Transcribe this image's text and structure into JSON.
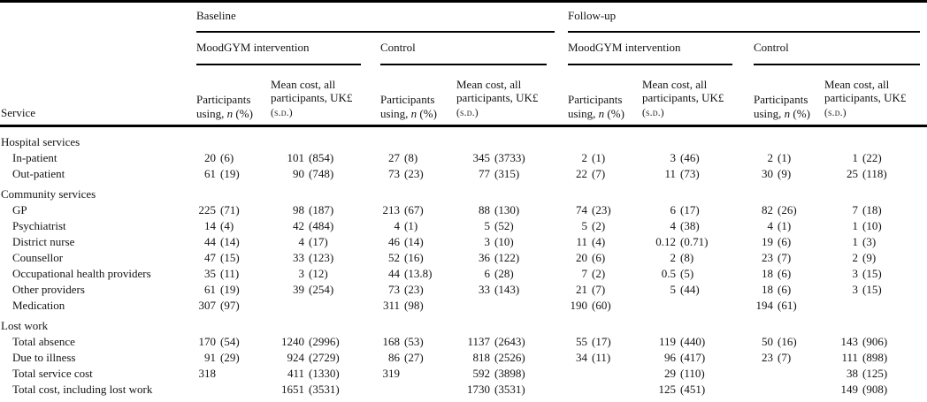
{
  "colors": {
    "background": "#ffffff",
    "text": "#141414",
    "rule": "#000000"
  },
  "table": {
    "service_column_header": "Service",
    "groups": {
      "baseline": "Baseline",
      "followup": "Follow-up"
    },
    "subgroups": {
      "intervention": "MoodGYM intervention",
      "control": "Control"
    },
    "participants_header": {
      "line1": "Participants",
      "line2_pre": "using, ",
      "italic_n": "n",
      "line2_post": " (%)"
    },
    "mean_cost_header": {
      "line1": "Mean cost, all",
      "line2": "participants, UK£",
      "line3_smallcaps": "(s.d.)"
    },
    "rows": [
      {
        "label": "Hospital services",
        "type": "section",
        "values": [
          "",
          "",
          "",
          "",
          "",
          "",
          "",
          ""
        ]
      },
      {
        "label": "In-patient",
        "type": "item",
        "values": [
          "20 (6)",
          "101 (854)",
          "27 (8)",
          "345 (3733)",
          "2 (1)",
          "3 (46)",
          "2 (1)",
          "1 (22)"
        ]
      },
      {
        "label": "Out-patient",
        "type": "item",
        "values": [
          "61 (19)",
          "90 (748)",
          "73 (23)",
          "77 (315)",
          "22 (7)",
          "11 (73)",
          "30 (9)",
          "25 (118)"
        ]
      },
      {
        "label": "Community services",
        "type": "section",
        "values": [
          "",
          "",
          "",
          "",
          "",
          "",
          "",
          ""
        ]
      },
      {
        "label": "GP",
        "type": "item",
        "values": [
          "225 (71)",
          "98 (187)",
          "213 (67)",
          "88 (130)",
          "74 (23)",
          "6 (17)",
          "82 (26)",
          "7 (18)"
        ]
      },
      {
        "label": "Psychiatrist",
        "type": "item",
        "values": [
          "14 (4)",
          "42 (484)",
          "4 (1)",
          "5 (52)",
          "5 (2)",
          "4 (38)",
          "4 (1)",
          "1 (10)"
        ]
      },
      {
        "label": "District nurse",
        "type": "item",
        "values": [
          "44 (14)",
          "4 (17)",
          "46 (14)",
          "3 (10)",
          "11 (4)",
          "0.12 (0.71)",
          "19 (6)",
          "1 (3)"
        ]
      },
      {
        "label": "Counsellor",
        "type": "item",
        "values": [
          "47 (15)",
          "33 (123)",
          "52 (16)",
          "36 (122)",
          "20 (6)",
          "2 (8)",
          "23 (7)",
          "2 (9)"
        ]
      },
      {
        "label": "Occupational health providers",
        "type": "item",
        "values": [
          "35 (11)",
          "3 (12)",
          "44 (13.8)",
          "6 (28)",
          "7 (2)",
          "0.5 (5)",
          "18 (6)",
          "3 (15)"
        ]
      },
      {
        "label": "Other providers",
        "type": "item",
        "values": [
          "61 (19)",
          "39 (254)",
          "73 (23)",
          "33 (143)",
          "21 (7)",
          "5 (44)",
          "18 (6)",
          "3 (15)"
        ]
      },
      {
        "label": "Medication",
        "type": "item",
        "values": [
          "307 (97)",
          "",
          "311 (98)",
          "",
          "190 (60)",
          "",
          "194 (61)",
          ""
        ]
      },
      {
        "label": "Lost work",
        "type": "section",
        "values": [
          "",
          "",
          "",
          "",
          "",
          "",
          "",
          ""
        ]
      },
      {
        "label": "Total absence",
        "type": "item",
        "values": [
          "170 (54)",
          "1240 (2996)",
          "168 (53)",
          "1137 (2643)",
          "55 (17)",
          "119 (440)",
          "50 (16)",
          "143 (906)"
        ]
      },
      {
        "label": "Due to illness",
        "type": "item",
        "values": [
          "91 (29)",
          "924 (2729)",
          "86 (27)",
          "818 (2526)",
          "34 (11)",
          "96 (417)",
          "23 (7)",
          "111 (898)"
        ]
      },
      {
        "label": "Total service cost",
        "type": "item",
        "values": [
          "318",
          "411 (1330)",
          "319",
          "592 (3898)",
          "",
          "29 (110)",
          "",
          "38 (125)"
        ]
      },
      {
        "label": "Total cost, including lost work",
        "type": "item",
        "values": [
          "",
          "1651 (3531)",
          "",
          "1730 (3531)",
          "",
          "125 (451)",
          "",
          "149 (908)"
        ]
      }
    ]
  }
}
